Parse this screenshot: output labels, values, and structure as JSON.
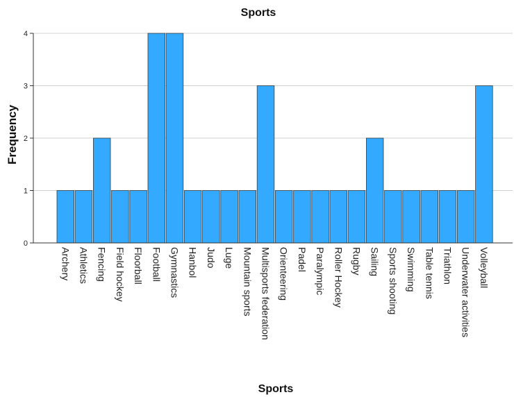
{
  "chart_data": {
    "type": "bar",
    "title": "Sports",
    "xlabel": "Sports",
    "ylabel": "Frequency",
    "ylim": [
      0,
      4
    ],
    "yticks": [
      0,
      1,
      2,
      3,
      4
    ],
    "grid": true,
    "bar_color": "#33aaff",
    "categories": [
      "Archery",
      "Athletics",
      "Fencing",
      "Field hockey",
      "Floorball",
      "Football",
      "Gymnastics",
      "Hanbol",
      "Judo",
      "Luge",
      "Mountain sports",
      "Multisports federation",
      "Orienteering",
      "Padel",
      "Paralympic",
      "Roller Hockey",
      "Rugby",
      "Sailing",
      "Sports shooting",
      "Swimming",
      "Table tennis",
      "Triathlon",
      "Underwater activities",
      "Volleyball"
    ],
    "values": [
      1,
      1,
      2,
      1,
      1,
      4,
      4,
      1,
      1,
      1,
      1,
      3,
      1,
      1,
      1,
      1,
      1,
      2,
      1,
      1,
      1,
      1,
      1,
      3
    ]
  }
}
